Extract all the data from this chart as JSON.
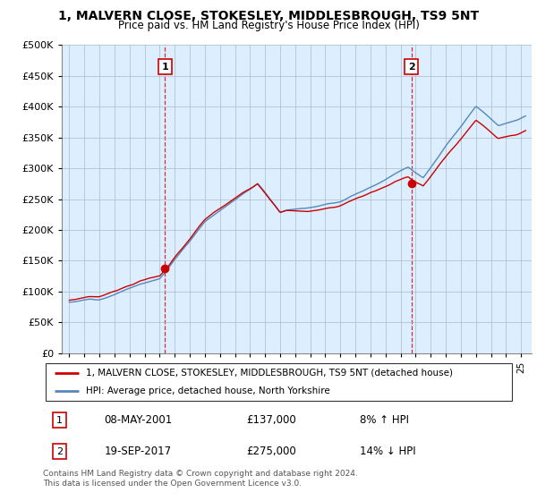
{
  "title": "1, MALVERN CLOSE, STOKESLEY, MIDDLESBROUGH, TS9 5NT",
  "subtitle": "Price paid vs. HM Land Registry's House Price Index (HPI)",
  "legend_line1": "1, MALVERN CLOSE, STOKESLEY, MIDDLESBROUGH, TS9 5NT (detached house)",
  "legend_line2": "HPI: Average price, detached house, North Yorkshire",
  "point1_date": "08-MAY-2001",
  "point1_price": "£137,000",
  "point1_hpi": "8% ↑ HPI",
  "point2_date": "19-SEP-2017",
  "point2_price": "£275,000",
  "point2_hpi": "14% ↓ HPI",
  "footer": "Contains HM Land Registry data © Crown copyright and database right 2024.\nThis data is licensed under the Open Government Licence v3.0.",
  "red_color": "#cc0000",
  "blue_color": "#5588bb",
  "chart_bg": "#ddeeff",
  "grid_color": "#aabbcc",
  "ylim": [
    0,
    500000
  ],
  "yticks": [
    0,
    50000,
    100000,
    150000,
    200000,
    250000,
    300000,
    350000,
    400000,
    450000,
    500000
  ],
  "price1": 137000,
  "price2": 275000,
  "t1": 2001.35,
  "t2": 2017.72
}
